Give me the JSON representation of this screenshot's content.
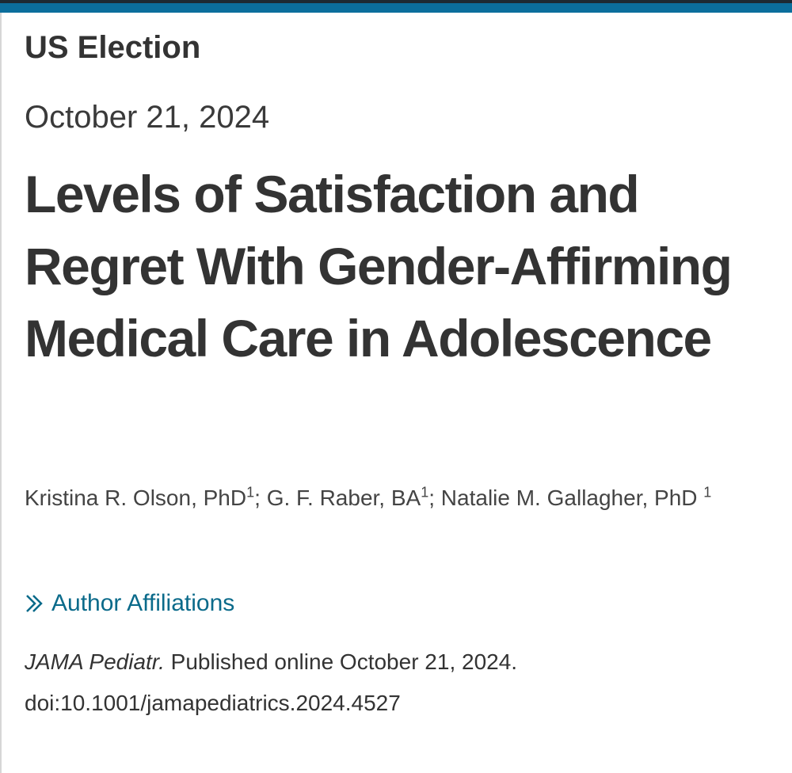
{
  "section": "US Election",
  "date": "October 21, 2024",
  "title": "Levels of Satisfaction and Regret With Gender-Affirming Medical Care in Adolescence",
  "authors": [
    {
      "name": "Kristina R. Olson, PhD",
      "affiliation": "1"
    },
    {
      "name": "G. F. Raber, BA",
      "affiliation": "1"
    },
    {
      "name": "Natalie M. Gallagher, PhD",
      "affiliation": "1"
    }
  ],
  "author_separator": ";",
  "affiliations_link": "Author Affiliations",
  "citation": {
    "journal": "JAMA Pediatr.",
    "published": "Published online October 21, 2024.",
    "doi": "doi:10.1001/jamapediatrics.2024.4527"
  }
}
